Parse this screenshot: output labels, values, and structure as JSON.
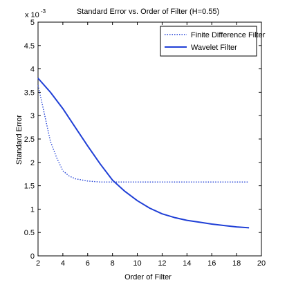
{
  "chart_data": {
    "type": "line",
    "title": "Standard Error vs. Order of Filter (H=0.55)",
    "xlabel": "Order of Filter",
    "ylabel": "Standard Error",
    "y_exponent_label": "x 10",
    "y_exponent_power": "-3",
    "xlim": [
      2,
      20
    ],
    "ylim": [
      0,
      0.005
    ],
    "x_ticks": [
      2,
      4,
      6,
      8,
      10,
      12,
      14,
      16,
      18,
      20
    ],
    "x_tick_labels": [
      "2",
      "4",
      "6",
      "8",
      "10",
      "12",
      "14",
      "16",
      "18",
      "20"
    ],
    "y_ticks": [
      0,
      0.0005,
      0.001,
      0.0015,
      0.002,
      0.0025,
      0.003,
      0.0035,
      0.004,
      0.0045,
      0.005
    ],
    "y_tick_labels": [
      "0",
      "0.5",
      "1",
      "1.5",
      "2",
      "2.5",
      "3",
      "3.5",
      "4",
      "4.5",
      "5"
    ],
    "grid": false,
    "legend_position": "top-right",
    "series": [
      {
        "name": "Finite Difference Filter",
        "color": "#1f3fd6",
        "style": "dotted",
        "x": [
          2,
          2.5,
          3,
          3.5,
          4,
          4.5,
          5,
          6,
          7,
          8,
          9,
          10,
          11,
          12,
          13,
          14,
          15,
          16,
          17,
          18,
          19
        ],
        "y": [
          0.00365,
          0.00305,
          0.00245,
          0.0021,
          0.00182,
          0.00171,
          0.00165,
          0.0016,
          0.00158,
          0.00158,
          0.00158,
          0.00158,
          0.00158,
          0.00158,
          0.00158,
          0.00158,
          0.00158,
          0.00158,
          0.00158,
          0.00158,
          0.00158
        ]
      },
      {
        "name": "Wavelet Filter",
        "color": "#1f3fd6",
        "style": "solid",
        "x": [
          2,
          3,
          4,
          5,
          6,
          7,
          8,
          9,
          10,
          11,
          12,
          13,
          14,
          15,
          16,
          17,
          18,
          19
        ],
        "y": [
          0.0038,
          0.0035,
          0.00315,
          0.00275,
          0.00235,
          0.00197,
          0.00162,
          0.00138,
          0.00118,
          0.00102,
          0.0009,
          0.00082,
          0.00076,
          0.00072,
          0.00068,
          0.00065,
          0.00062,
          0.0006
        ]
      }
    ]
  }
}
